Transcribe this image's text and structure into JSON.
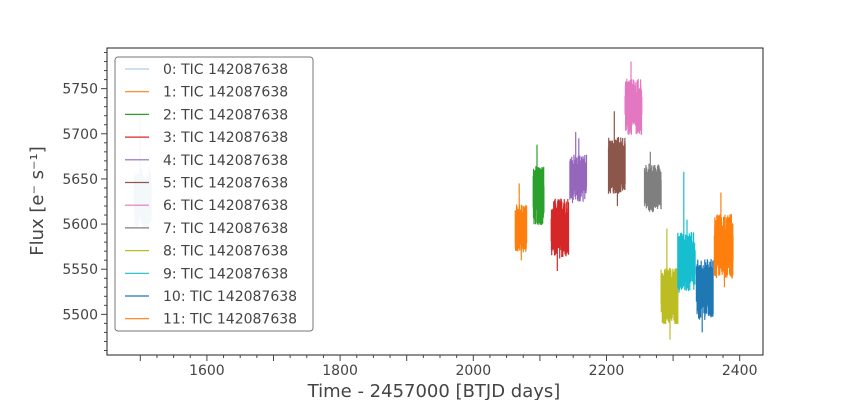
{
  "chart_data": {
    "type": "line",
    "title": "",
    "xlabel": "Time - 2457000 [BTJD days]",
    "ylabel": "Flux [e⁻ s⁻¹]",
    "xlim": [
      1450,
      2435
    ],
    "ylim": [
      5455,
      5795
    ],
    "xticks": [
      1600,
      1800,
      2000,
      2200,
      2400
    ],
    "yticks": [
      5500,
      5550,
      5600,
      5650,
      5700,
      5750
    ],
    "legend_position": "upper-left",
    "series": [
      {
        "name": "0: TIC 142087638",
        "color": "#aecde3",
        "x_range": [
          1491,
          1516
        ],
        "flux_range": [
          5590,
          5665
        ],
        "spikes": [
          5720
        ]
      },
      {
        "name": "1: TIC 142087638",
        "color": "#ff7f0e",
        "x_range": [
          2063,
          2080
        ],
        "flux_range": [
          5565,
          5625
        ],
        "spikes": [
          5645,
          5560
        ]
      },
      {
        "name": "2: TIC 142087638",
        "color": "#2ca02c",
        "x_range": [
          2090,
          2106
        ],
        "flux_range": [
          5595,
          5668
        ],
        "spikes": [
          5688
        ]
      },
      {
        "name": "3: TIC 142087638",
        "color": "#d62728",
        "x_range": [
          2117,
          2143
        ],
        "flux_range": [
          5558,
          5632
        ],
        "spikes": [
          5548
        ]
      },
      {
        "name": "4: TIC 142087638",
        "color": "#9467bd",
        "x_range": [
          2145,
          2170
        ],
        "flux_range": [
          5620,
          5680
        ],
        "spikes": [
          5702,
          5695
        ]
      },
      {
        "name": "5: TIC 142087638",
        "color": "#8c564b",
        "x_range": [
          2203,
          2228
        ],
        "flux_range": [
          5630,
          5700
        ],
        "spikes": [
          5725,
          5620
        ]
      },
      {
        "name": "6: TIC 142087638",
        "color": "#e377c2",
        "x_range": [
          2228,
          2253
        ],
        "flux_range": [
          5695,
          5765
        ],
        "spikes": [
          5780
        ]
      },
      {
        "name": "7: TIC 142087638",
        "color": "#7f7f7f",
        "x_range": [
          2257,
          2282
        ],
        "flux_range": [
          5610,
          5670
        ],
        "spikes": [
          5680
        ]
      },
      {
        "name": "8: TIC 142087638",
        "color": "#bcbd22",
        "x_range": [
          2282,
          2307
        ],
        "flux_range": [
          5485,
          5555
        ],
        "spikes": [
          5595,
          5472
        ]
      },
      {
        "name": "9: TIC 142087638",
        "color": "#17becf",
        "x_range": [
          2307,
          2333
        ],
        "flux_range": [
          5520,
          5595
        ],
        "spikes": [
          5658,
          5605
        ]
      },
      {
        "name": "10: TIC 142087638",
        "color": "#1f77b4",
        "x_range": [
          2335,
          2360
        ],
        "flux_range": [
          5490,
          5565
        ],
        "spikes": [
          5480
        ]
      },
      {
        "name": "11: TIC 142087638",
        "color": "#ff7f0e",
        "x_range": [
          2362,
          2390
        ],
        "flux_range": [
          5535,
          5615
        ],
        "spikes": [
          5635,
          5530
        ]
      }
    ]
  }
}
